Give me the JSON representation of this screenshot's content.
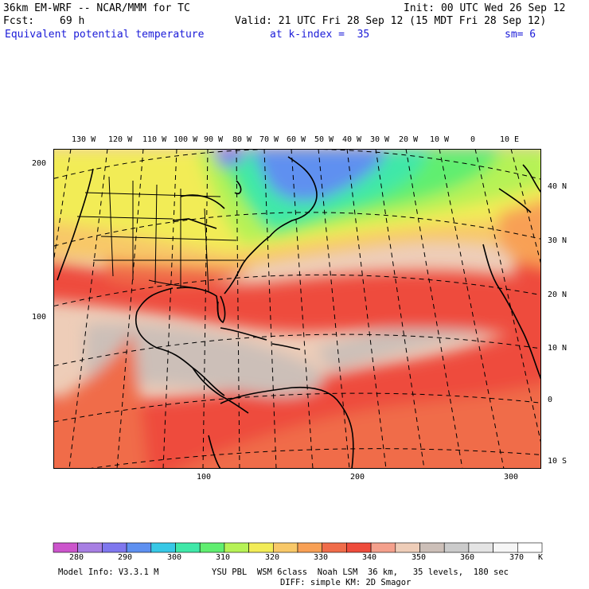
{
  "header": {
    "line1_left": "36km EM-WRF -- NCAR/MMM for TC",
    "line1_right": "Init: 00 UTC Wed 26 Sep 12",
    "line2_left": "Fcst:",
    "line2_fcst": "69 h",
    "line2_right": "Valid: 21 UTC Fri 28 Sep 12 (15 MDT Fri 28 Sep 12)",
    "line3_field": "Equivalent potential temperature",
    "line3_level": "at k-index =  35",
    "line3_sm": "sm= 6"
  },
  "top_lon_labels": [
    "130 W",
    "120 W",
    "110 W",
    "100 W",
    "90 W",
    "80 W",
    "70 W",
    "60 W",
    "50 W",
    "40 W",
    "30 W",
    "20 W",
    "10 W",
    "0",
    "10 E"
  ],
  "right_lat_labels": [
    "40 N",
    "30 N",
    "20 N",
    "10 N",
    "0",
    "10 S"
  ],
  "left_grid_labels": [
    "200",
    "100"
  ],
  "bottom_grid_labels": [
    "100",
    "200",
    "300"
  ],
  "colorbar": {
    "colors": [
      "#cc55cc",
      "#a77fe3",
      "#7f77ee",
      "#5e90f0",
      "#37c8e6",
      "#3fe8a8",
      "#60ee70",
      "#b6f256",
      "#f2ec57",
      "#f8c868",
      "#f8a055",
      "#f06c4a",
      "#ee4c3c",
      "#f4a08c",
      "#eecdb8",
      "#ccbfb8",
      "#cbcbcb",
      "#e4e4e4",
      "#f6f6f6",
      "#ffffff"
    ],
    "labels": [
      "280",
      "290",
      "300",
      "310",
      "320",
      "330",
      "340",
      "350",
      "360",
      "370"
    ],
    "unit": "K"
  },
  "footer": {
    "model": "Model Info: V3.3.1 M",
    "physics": "YSU PBL  WSM 6class  Noah LSM  36 km,   35 levels,  180 sec",
    "physics2": "DIFF: simple KM: 2D Smagor"
  }
}
